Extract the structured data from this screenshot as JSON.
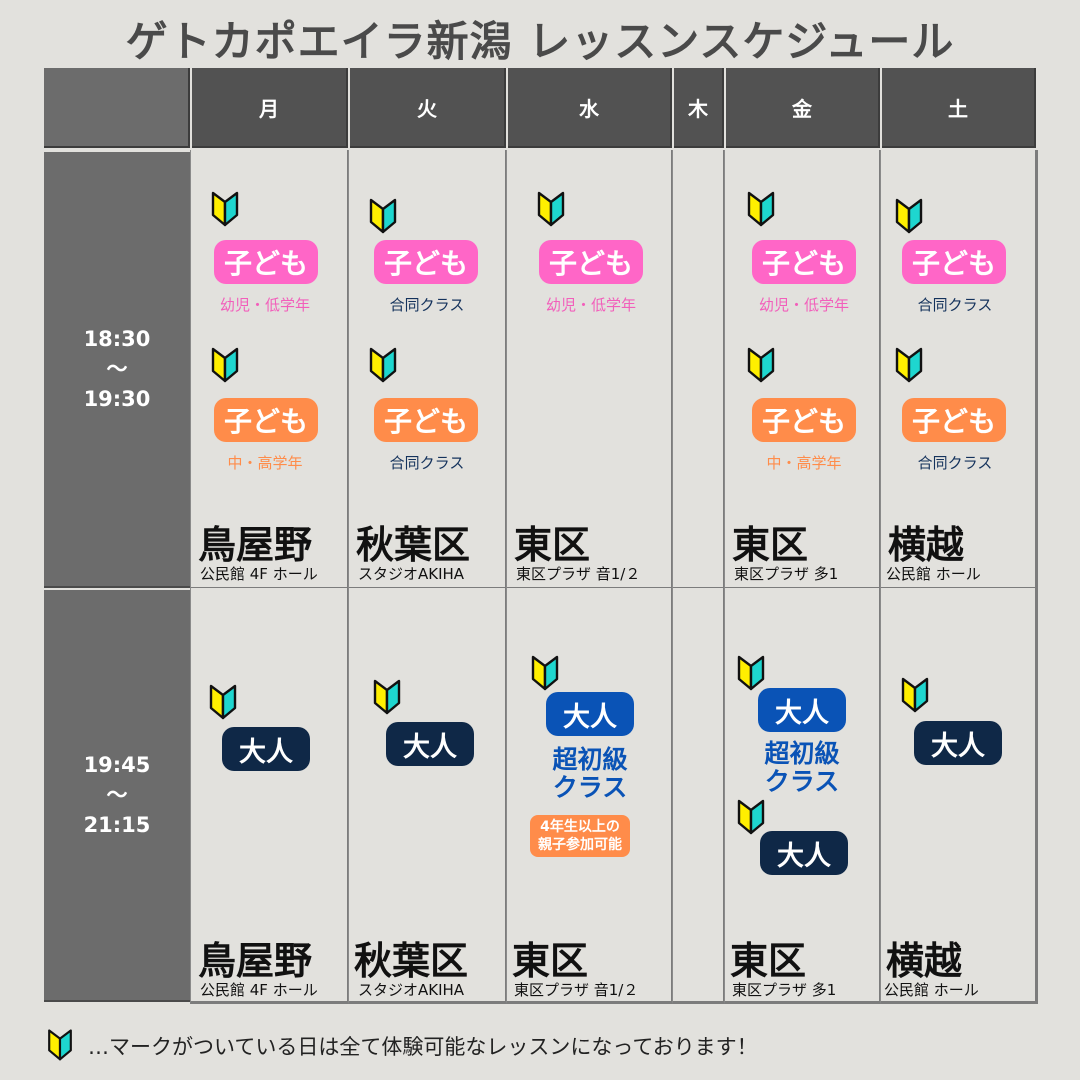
{
  "title": "ゲトカポエイラ新潟 レッスンスケジュール",
  "days": [
    "月",
    "火",
    "水",
    "木",
    "金",
    "土"
  ],
  "times": {
    "evening": {
      "start": "18:30",
      "sep": "～",
      "end": "19:30"
    },
    "night": {
      "start": "19:45",
      "sep": "～",
      "end": "21:15"
    }
  },
  "classes": {
    "kids": "子ども",
    "adult": "大人",
    "kids_young": "幼児・低学年",
    "kids_older": "中・高学年",
    "joint": "合同クラス",
    "beginner": "超初級\nクラス",
    "family_note": "4年生以上の\n親子参加可能"
  },
  "venues": {
    "mon": {
      "name": "鳥屋野",
      "detail": "公民館 4F ホール"
    },
    "tue": {
      "name": "秋葉区",
      "detail": "スタジオAKIHA"
    },
    "wed": {
      "name": "東区",
      "detail": "東区プラザ 音1/２"
    },
    "fri": {
      "name": "東区",
      "detail": "東区プラザ 多1"
    },
    "sat": {
      "name": "横越",
      "detail": "公民館 ホール"
    }
  },
  "footer": "…マークがついている日は全て体験可能なレッスンになっております！",
  "colors": {
    "header": "#525252",
    "time_col": "#6c6c6c",
    "kids_pink": "#ff66c7",
    "kids_orange": "#ff8c4a",
    "adult_navy": "#0f2847",
    "beginner_blue": "#0a53b6",
    "leaf_yellow": "#ffef00",
    "leaf_cyan": "#1ed6cf"
  },
  "icons": {
    "beginner_mark": "wakaba-mark-icon"
  }
}
